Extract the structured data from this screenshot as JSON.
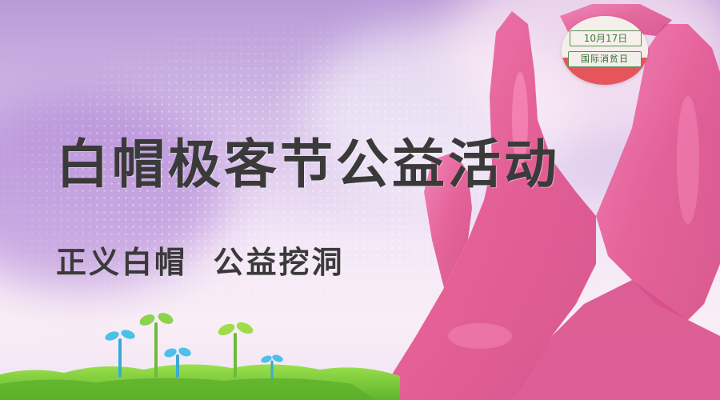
{
  "banner": {
    "title": "白帽极客节公益活动",
    "subtitle": "正义白帽  公益挖洞",
    "badge": {
      "date": "10月17日",
      "label": "国际消贫日"
    }
  },
  "colors": {
    "hand_pink": "#e85a95",
    "badge_red": "#e6555c",
    "badge_green": "#5d8f58",
    "text_dark": "#3a3a3a",
    "sprout_green": "#7cc640",
    "sprout_blue": "#3aa9d6"
  },
  "icons": {
    "hands": "heart-hands-illustration",
    "sprouts": "sprout-icons",
    "grass": "grass-strip"
  }
}
